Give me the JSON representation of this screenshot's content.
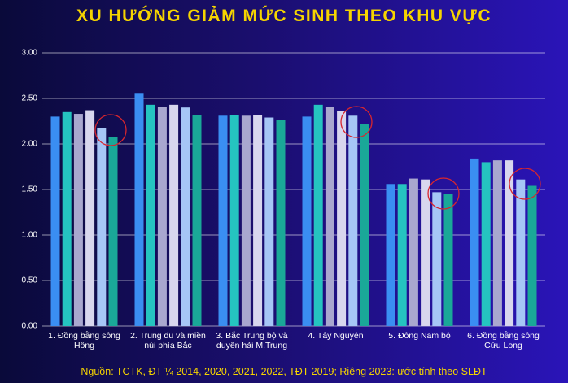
{
  "chart_data": {
    "type": "bar",
    "title": "XU HƯỚNG GIẢM MỨC SINH THEO KHU VỰC",
    "source": "Nguồn: TCTK, ĐT ¼ 2014, 2020, 2021, 2022, TĐT 2019; Riêng 2023: ước tính theo SLĐT",
    "categories": [
      "1. Đồng bằng sông Hồng",
      "2. Trung du và miền núi phía Bắc",
      "3. Bắc Trung bộ và duyên hải M.Trung",
      "4. Tây Nguyên",
      "5. Đông Nam bộ",
      "6. Đồng bằng sông Cửu Long"
    ],
    "series": [
      {
        "color": "#3a8ef2",
        "values": [
          2.3,
          2.56,
          2.31,
          2.3,
          1.56,
          1.84
        ]
      },
      {
        "color": "#25c4c0",
        "values": [
          2.35,
          2.43,
          2.32,
          2.43,
          1.56,
          1.8
        ]
      },
      {
        "color": "#a9a7cf",
        "values": [
          2.33,
          2.41,
          2.31,
          2.41,
          1.62,
          1.82
        ]
      },
      {
        "color": "#d8d6ee",
        "values": [
          2.37,
          2.43,
          2.32,
          2.36,
          1.61,
          1.82
        ]
      },
      {
        "color": "#a6c6f6",
        "values": [
          2.17,
          2.4,
          2.29,
          2.31,
          1.47,
          1.61
        ]
      },
      {
        "color": "#1aa898",
        "values": [
          2.08,
          2.32,
          2.26,
          2.22,
          1.45,
          1.54
        ]
      }
    ],
    "ylim": [
      0,
      3
    ],
    "yticks": [
      {
        "value": 0,
        "label": "0.00"
      },
      {
        "value": 0.5,
        "label": "0.50"
      },
      {
        "value": 1,
        "label": "1.00"
      },
      {
        "value": 1.5,
        "label": "1.50"
      },
      {
        "value": 2,
        "label": "2.00"
      },
      {
        "value": 2.5,
        "label": "2.50"
      },
      {
        "value": 3,
        "label": "3.00"
      }
    ],
    "grid": true
  }
}
